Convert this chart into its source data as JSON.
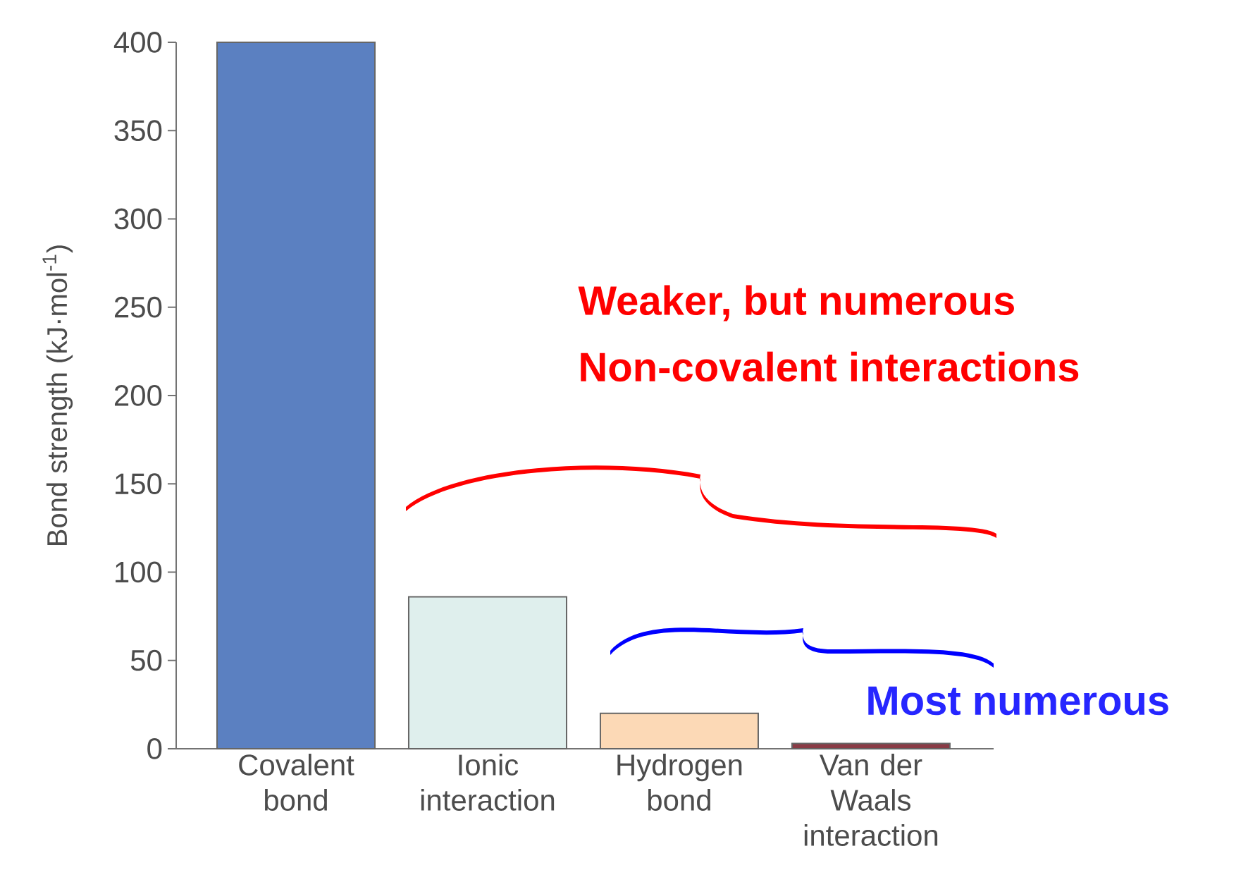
{
  "chart_data": {
    "type": "bar",
    "ylabel": "Bond strength (kJ·mol$^{-1}$)",
    "categories": [
      "Covalent bond",
      "Ionic interaction",
      "Hydrogen bond",
      "Van der Waals interaction"
    ],
    "values": [
      400,
      86,
      20,
      3
    ],
    "colors": [
      "#5b80c1",
      "#dfefed",
      "#fcd9b6",
      "#8a3b45"
    ],
    "ylim": [
      0,
      400
    ],
    "yticks": [
      0,
      50,
      100,
      150,
      200,
      250,
      300,
      350,
      400
    ],
    "annotations": [
      "Weaker, but numerous",
      "Non-covalent interactions",
      "Most numerous"
    ]
  }
}
